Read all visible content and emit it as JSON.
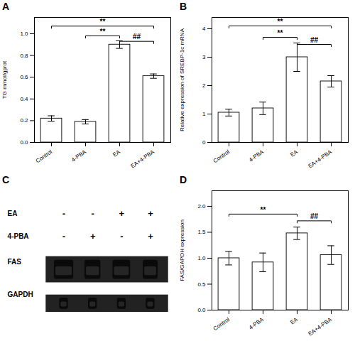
{
  "chart_data": [
    {
      "type": "bar",
      "title": "A",
      "categories": [
        "Control",
        "4-PBA",
        "EA",
        "EA+4-PBA"
      ],
      "values": [
        0.22,
        0.19,
        0.9,
        0.61
      ],
      "errors": [
        0.025,
        0.02,
        0.035,
        0.02
      ],
      "colors": [
        "white",
        "white",
        "white",
        "white"
      ],
      "ylabel": "TG mmol/gprot",
      "ylim": [
        0,
        1.15
      ],
      "yticks": [
        {
          "value": 0.0,
          "label": "0.0"
        },
        0.2,
        0.4,
        0.6,
        0.8,
        {
          "value": 1.0,
          "label": "1.0"
        }
      ],
      "annotations": [
        {
          "x1": "4-PBA",
          "x2": "EA",
          "y": 0.98,
          "label": "**"
        },
        {
          "x1": "Control",
          "x2": "EA+4-PBA",
          "y": 1.07,
          "label": "**"
        },
        {
          "x1": "EA",
          "x2": "EA+4-PBA",
          "y": 0.93,
          "label": "##"
        }
      ]
    },
    {
      "type": "bar",
      "title": "B",
      "categories": [
        "Control",
        "4-PBA",
        "EA",
        "EA+4-PBA"
      ],
      "values": [
        1.05,
        1.2,
        3.0,
        2.15
      ],
      "errors": [
        0.12,
        0.22,
        0.5,
        0.2
      ],
      "colors": [
        "white",
        "white",
        "white",
        "white"
      ],
      "ylabel": "Relative expression of SREBP-1c mRNA",
      "ylim": [
        0,
        4.4
      ],
      "yticks": [
        0,
        1,
        2,
        3,
        4
      ],
      "annotations": [
        {
          "x1": "4-PBA",
          "x2": "EA",
          "y": 3.7,
          "label": "**"
        },
        {
          "x1": "Control",
          "x2": "EA+4-PBA",
          "y": 4.1,
          "label": "**"
        },
        {
          "x1": "EA",
          "x2": "EA+4-PBA",
          "y": 3.45,
          "label": "##"
        }
      ]
    },
    {
      "type": "blot",
      "title": "C",
      "annotations": [
        {
          "text": "EA",
          "labels": [
            "-",
            "-",
            "+",
            "+"
          ]
        },
        {
          "text": "4-PBA",
          "labels": [
            "-",
            "+",
            "-",
            "+"
          ]
        }
      ],
      "series": [
        {
          "name": "FAS",
          "values": [
            0.85,
            0.7,
            0.78,
            0.65
          ]
        },
        {
          "name": "GAPDH",
          "values": [
            0.5,
            0.5,
            0.5,
            0.5
          ]
        }
      ]
    },
    {
      "type": "bar",
      "title": "D",
      "categories": [
        "Control",
        "4-PBA",
        "EA",
        "EA+4-PBA"
      ],
      "values": [
        1.0,
        0.92,
        1.48,
        1.06
      ],
      "errors": [
        0.13,
        0.18,
        0.12,
        0.18
      ],
      "colors": [
        "white",
        "white",
        "white",
        "white"
      ],
      "ylabel": "FAS/GAPDH expression",
      "ylim": [
        0,
        2.3
      ],
      "yticks": [
        {
          "value": 0.0,
          "label": "0.0"
        },
        0.5,
        {
          "value": 1.0,
          "label": "1.0"
        },
        1.5,
        {
          "value": 2.0,
          "label": "2.0"
        }
      ],
      "annotations": [
        {
          "x1": "Control",
          "x2": "EA",
          "y": 1.85,
          "label": "**"
        },
        {
          "x1": "EA",
          "x2": "EA+4-PBA",
          "y": 1.72,
          "label": "##"
        }
      ]
    }
  ]
}
